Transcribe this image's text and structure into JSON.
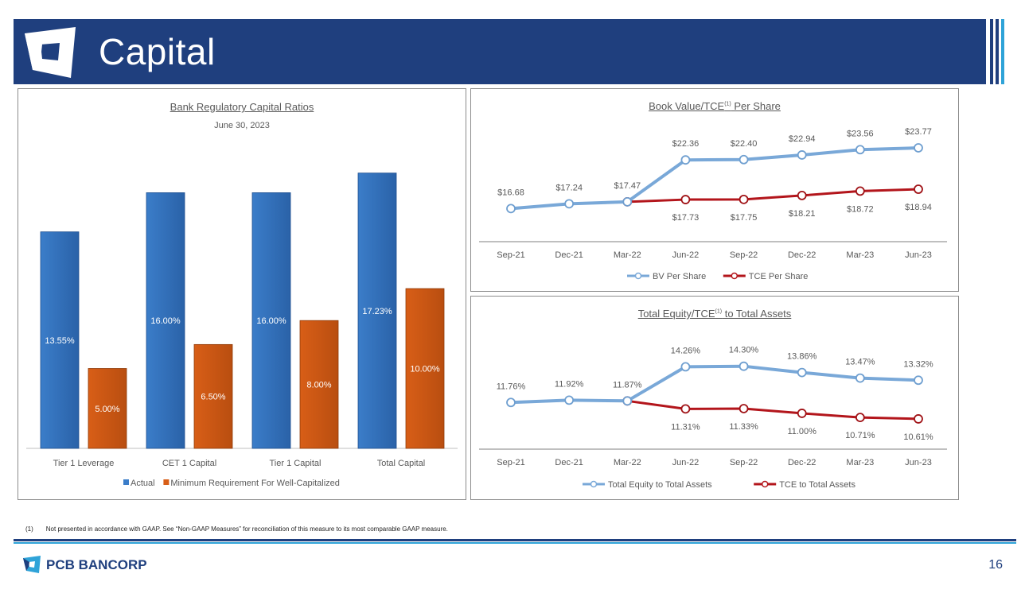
{
  "header": {
    "title": "Capital"
  },
  "colors": {
    "navy": "#1f3f7e",
    "blue": "#3b7dc9",
    "orange": "#d85e17",
    "red": "#b3151b",
    "lightblue": "#79a8d8"
  },
  "footnote": {
    "num": "(1)",
    "text": "Not presented in accordance with GAAP. See “Non-GAAP Measures” for reconciliation of this measure to its most comparable GAAP measure."
  },
  "footer": {
    "brand": "PCB BANCORP",
    "page": "16"
  },
  "chart_data": [
    {
      "type": "bar",
      "title": "Bank Regulatory Capital Ratios",
      "subtitle": "June 30, 2023",
      "categories": [
        "Tier 1 Leverage",
        "CET 1 Capital",
        "Tier 1 Capital",
        "Total Capital"
      ],
      "series": [
        {
          "name": "Actual",
          "values": [
            13.55,
            16.0,
            16.0,
            17.23
          ],
          "labels": [
            "13.55%",
            "16.00%",
            "16.00%",
            "17.23%"
          ],
          "color": "#3b7dc9"
        },
        {
          "name": "Minimum Requirement For Well-Capitalized",
          "values": [
            5.0,
            6.5,
            8.0,
            10.0
          ],
          "labels": [
            "5.00%",
            "6.50%",
            "8.00%",
            "10.00%"
          ],
          "color": "#d85e17"
        }
      ],
      "ylim": [
        0,
        20
      ],
      "legend": "bottom"
    },
    {
      "type": "line",
      "title": "Book Value/TCE",
      "title_sup": "(1)",
      "title_suffix": " Per Share",
      "categories": [
        "Sep-21",
        "Dec-21",
        "Mar-22",
        "Jun-22",
        "Sep-22",
        "Dec-22",
        "Mar-23",
        "Jun-23"
      ],
      "series": [
        {
          "name": "BV Per Share",
          "values": [
            16.68,
            17.24,
            17.47,
            22.36,
            22.4,
            22.94,
            23.56,
            23.77
          ],
          "labels": [
            "$16.68",
            "$17.24",
            "$17.47",
            "$22.36",
            "$22.40",
            "$22.94",
            "$23.56",
            "$23.77"
          ],
          "color": "#79a8d8"
        },
        {
          "name": "TCE Per Share",
          "values": [
            null,
            null,
            17.47,
            17.73,
            17.75,
            18.21,
            18.72,
            18.94
          ],
          "labels": [
            "",
            "",
            "",
            "$17.73",
            "$17.75",
            "$18.21",
            "$18.72",
            "$18.94"
          ],
          "color": "#b3151b"
        }
      ],
      "ylim": [
        13,
        26
      ],
      "legend": "bottom"
    },
    {
      "type": "line",
      "title": "Total Equity/TCE",
      "title_sup": "(1)",
      "title_suffix": " to Total Assets",
      "categories": [
        "Sep-21",
        "Dec-21",
        "Mar-22",
        "Jun-22",
        "Sep-22",
        "Dec-22",
        "Mar-23",
        "Jun-23"
      ],
      "series": [
        {
          "name": "Total Equity to Total Assets",
          "values": [
            11.76,
            11.92,
            11.87,
            14.26,
            14.3,
            13.86,
            13.47,
            13.32
          ],
          "labels": [
            "11.76%",
            "11.92%",
            "11.87%",
            "14.26%",
            "14.30%",
            "13.86%",
            "13.47%",
            "13.32%"
          ],
          "color": "#79a8d8"
        },
        {
          "name": "TCE to Total Assets",
          "values": [
            null,
            null,
            11.87,
            11.31,
            11.33,
            11.0,
            10.71,
            10.61
          ],
          "labels": [
            "",
            "",
            "",
            "11.31%",
            "11.33%",
            "11.00%",
            "10.71%",
            "10.61%"
          ],
          "color": "#b3151b"
        }
      ],
      "ylim": [
        8.6,
        16.4
      ],
      "legend": "bottom"
    }
  ]
}
